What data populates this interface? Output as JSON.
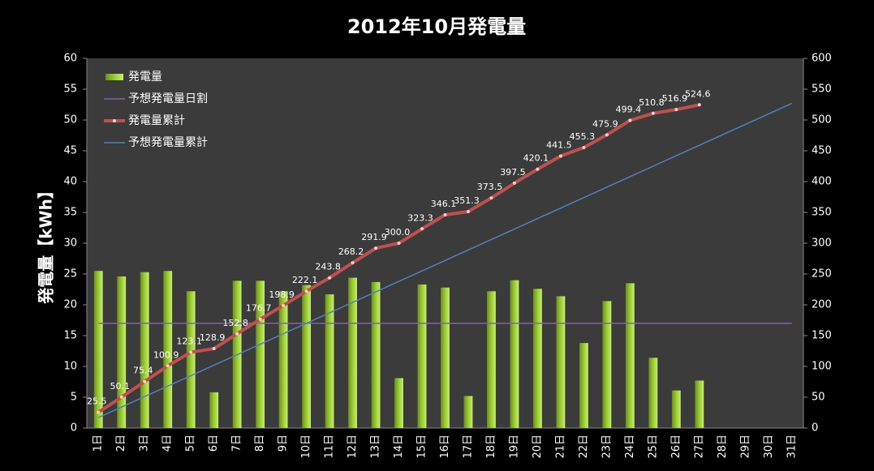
{
  "chart_data": {
    "type": "bar-line",
    "title": "2012年10月発電量",
    "y_label": "発電量【kWh】",
    "categories": [
      "1日",
      "2日",
      "3日",
      "4日",
      "5日",
      "6日",
      "7日",
      "8日",
      "9日",
      "10日",
      "11日",
      "12日",
      "13日",
      "14日",
      "15日",
      "16日",
      "17日",
      "18日",
      "19日",
      "20日",
      "21日",
      "22日",
      "23日",
      "24日",
      "25日",
      "26日",
      "27日",
      "28日",
      "29日",
      "30日",
      "31日"
    ],
    "series": [
      {
        "name": "発電量",
        "type": "bar",
        "color": "#9acd32",
        "values": [
          25.5,
          24.6,
          25.3,
          25.5,
          22.2,
          5.8,
          23.9,
          23.9,
          22.2,
          23.2,
          21.7,
          24.4,
          23.7,
          8.1,
          23.3,
          22.8,
          5.2,
          22.2,
          24.0,
          22.6,
          21.4,
          13.8,
          20.6,
          23.5,
          11.4,
          6.1,
          7.7,
          null,
          null,
          null,
          null
        ]
      },
      {
        "name": "予想発電量日割",
        "type": "line",
        "color": "#8064a2",
        "values": [
          17,
          17,
          17,
          17,
          17,
          17,
          17,
          17,
          17,
          17,
          17,
          17,
          17,
          17,
          17,
          17,
          17,
          17,
          17,
          17,
          17,
          17,
          17,
          17,
          17,
          17,
          17,
          17,
          17,
          17,
          17
        ]
      },
      {
        "name": "発電量累計",
        "type": "line",
        "axis": "y2",
        "color": "#c0504d",
        "markers": true,
        "values": [
          25.5,
          50.1,
          75.4,
          100.9,
          123.1,
          128.9,
          152.8,
          176.7,
          198.9,
          222.1,
          243.8,
          268.2,
          291.9,
          300.0,
          323.3,
          346.1,
          351.3,
          373.5,
          397.5,
          420.1,
          441.5,
          455.3,
          475.9,
          499.4,
          510.8,
          516.9,
          524.6,
          null,
          null,
          null,
          null
        ],
        "value_labels": [
          "25.5",
          "50.1",
          "75.4",
          "100.9",
          "123.1",
          "128.9",
          "152.8",
          "176.7",
          "198.9",
          "222.1",
          "243.8",
          "268.2",
          "291.9",
          "300.0",
          "323.3",
          "346.1",
          "351.3",
          "373.5",
          "397.5",
          "420.1",
          "441.5",
          "455.3",
          "475.9",
          "499.4",
          "510.8",
          "516.9",
          "524.6",
          null,
          null,
          null,
          null
        ]
      },
      {
        "name": "予想発電量累計",
        "type": "line",
        "axis": "y2",
        "color": "#4f81bd",
        "values": [
          17,
          34,
          51,
          68,
          85,
          102,
          119,
          136,
          153,
          170,
          187,
          204,
          221,
          238,
          255,
          272,
          289,
          306,
          323,
          340,
          357,
          374,
          391,
          408,
          425,
          442,
          459,
          476,
          493,
          510,
          527
        ]
      }
    ],
    "ylim": [
      0,
      60
    ],
    "yticks": [
      0,
      5,
      10,
      15,
      20,
      25,
      30,
      35,
      40,
      45,
      50,
      55,
      60
    ],
    "y2lim": [
      0,
      600
    ],
    "y2ticks": [
      0,
      50,
      100,
      150,
      200,
      250,
      300,
      350,
      400,
      450,
      500,
      550,
      600
    ],
    "grid": false,
    "legend": "top-left"
  }
}
